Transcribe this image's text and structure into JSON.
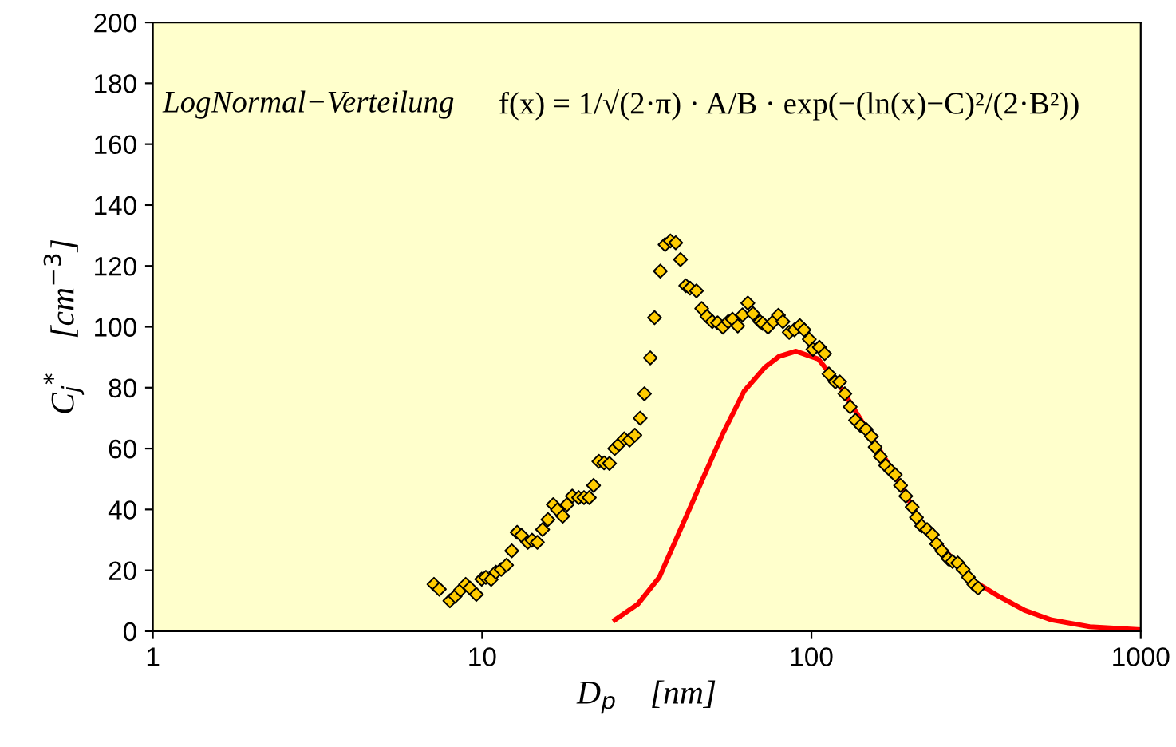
{
  "chart_data": {
    "type": "scatter",
    "xlabel": "D$_{p}$    [nm]",
    "ylabel": "C$_{j}$$^{*}$    [cm$^{−3}$]",
    "annotations": [
      "LogNormal−Verteilung",
      "f(x) = 1/√(2·π) · A/B · exp(−(ln(x)−C)²/(2·B²))"
    ],
    "log": "x",
    "xlim": [
      1,
      1000
    ],
    "xticks": [
      1,
      10,
      100,
      1000
    ],
    "ylim": [
      0,
      200
    ],
    "yticks": [
      0,
      20,
      40,
      60,
      80,
      100,
      120,
      140,
      160,
      180,
      200
    ],
    "grid": false,
    "legend": false,
    "series": [
      {
        "marker": "diamond",
        "color": "#ffcc00",
        "x": [
          7.14,
          7.41,
          7.98,
          8.28,
          8.59,
          8.91,
          9.18,
          9.6,
          9.97,
          10.26,
          10.65,
          11.01,
          11.43,
          11.86,
          12.3,
          12.77,
          13.16,
          13.76,
          14.17,
          14.71,
          15.26,
          15.84,
          16.44,
          16.93,
          17.57,
          18.1,
          18.78,
          19.64,
          20.38,
          21.15,
          21.79,
          22.61,
          23.46,
          24.35,
          25.27,
          26.03,
          27.02,
          28.04,
          29.09,
          30.19,
          31.1,
          32.41,
          33.38,
          34.76,
          35.94,
          37.3,
          38.71,
          40.02,
          41.53,
          42.79,
          44.74,
          46.42,
          48.17,
          50.0,
          51.88,
          53.84,
          55.86,
          57.56,
          59.74,
          61.76,
          64.09,
          66.5,
          69.8,
          71.1,
          73.8,
          76.6,
          79.4,
          81.9,
          85.6,
          88.8,
          92.2,
          95.0,
          98.5,
          101.1,
          105.7,
          109.7,
          113.0,
          118.2,
          121.8,
          126.3,
          131.1,
          136.1,
          141.2,
          146.5,
          152.1,
          156.1,
          161.9,
          168.1,
          174.4,
          179.7,
          186.5,
          193.4,
          202.2,
          208.4,
          216.2,
          224.5,
          232.9,
          239.9,
          248.9,
          260.3,
          268.2,
          278.2,
          288.7,
          299.9,
          311.1,
          320.5
        ],
        "values": [
          15.4,
          13.8,
          10.0,
          11.5,
          13.5,
          15.4,
          14.2,
          12.1,
          17.1,
          17.7,
          17.0,
          19.4,
          20.3,
          21.7,
          26.4,
          32.5,
          31.5,
          29.2,
          29.9,
          29.2,
          33.4,
          36.7,
          41.6,
          39.9,
          37.8,
          41.6,
          44.4,
          43.9,
          43.9,
          43.9,
          47.9,
          55.8,
          55.3,
          55.1,
          60.0,
          61.4,
          63.2,
          62.8,
          64.4,
          70.0,
          78.0,
          89.8,
          103.0,
          118.3,
          127.0,
          128.2,
          127.6,
          122.1,
          113.5,
          112.7,
          111.8,
          106.0,
          103.4,
          101.7,
          101.3,
          99.9,
          101.7,
          102.5,
          100.3,
          103.9,
          107.8,
          104.3,
          101.7,
          101.1,
          99.9,
          101.7,
          103.8,
          101.7,
          98.2,
          99.0,
          100.4,
          99.0,
          95.9,
          92.6,
          93.3,
          91.2,
          84.5,
          81.9,
          81.9,
          78.0,
          73.7,
          69.3,
          67.5,
          66.3,
          64.0,
          60.5,
          57.4,
          54.4,
          52.7,
          51.4,
          47.9,
          44.4,
          40.8,
          37.4,
          34.6,
          33.4,
          31.7,
          28.7,
          26.4,
          23.8,
          22.9,
          22.4,
          20.3,
          17.7,
          15.4,
          14.2
        ]
      },
      {
        "type": "line",
        "marker": "none",
        "line_style": "solid",
        "color": "#ff0000",
        "x": [
          25.3,
          29.7,
          34.5,
          40.0,
          46.4,
          53.8,
          62.5,
          72.4,
          79.8,
          89.8,
          104.9,
          121.8,
          146.5,
          176.4,
          212.4,
          255.4,
          307.5,
          370.4,
          445.6,
          536.5,
          700,
          1000
        ],
        "values": [
          3.7,
          8.9,
          17.7,
          33.4,
          49.2,
          64.9,
          78.9,
          86.8,
          90.3,
          92.0,
          89.4,
          80.7,
          66.7,
          52.7,
          36.9,
          26.4,
          16.8,
          11.5,
          6.8,
          3.7,
          1.5,
          0.5
        ]
      }
    ]
  }
}
